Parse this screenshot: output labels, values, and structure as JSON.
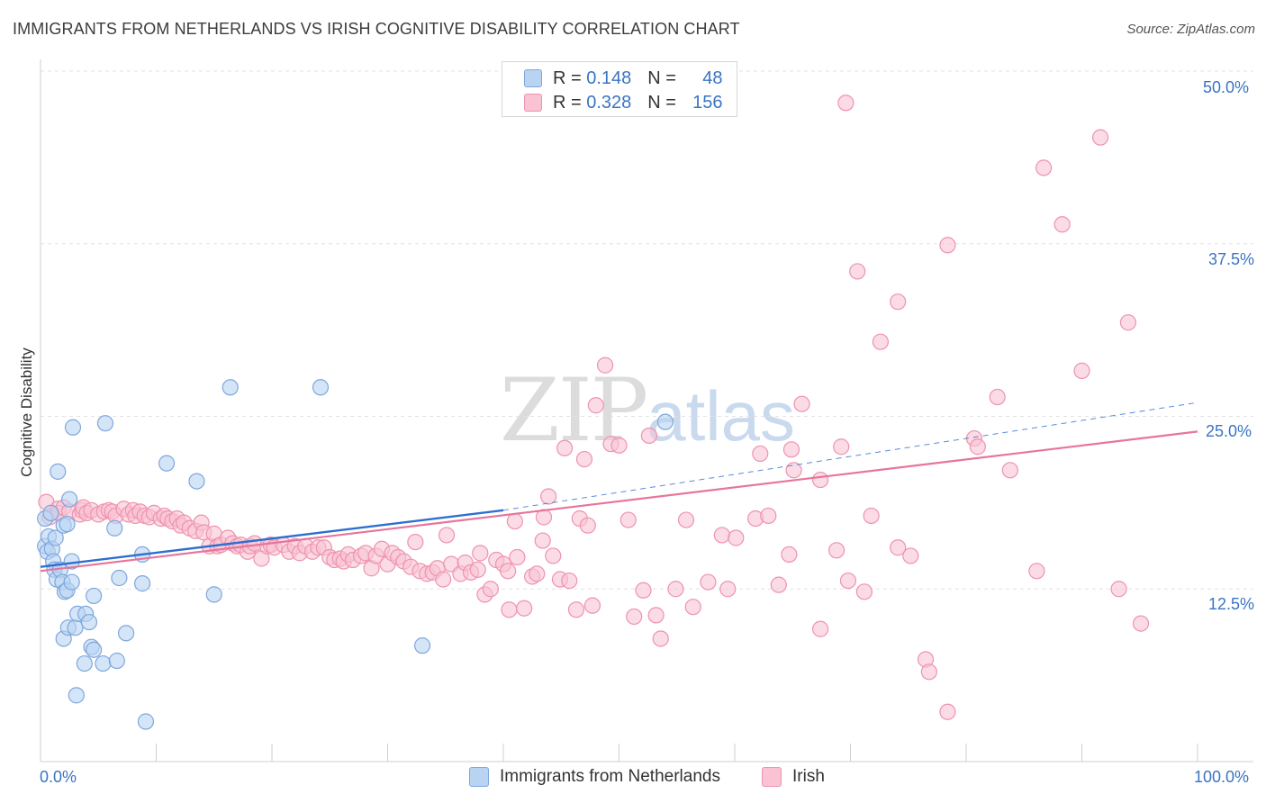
{
  "title": "IMMIGRANTS FROM NETHERLANDS VS IRISH COGNITIVE DISABILITY CORRELATION CHART",
  "source": "Source: ZipAtlas.com",
  "watermark": {
    "zip": "ZIP",
    "atlas": "atlas"
  },
  "legend": {
    "r_label": "R =",
    "n_label": "N =",
    "rows": [
      {
        "r": "0.148",
        "n": "48"
      },
      {
        "r": "0.328",
        "n": "156"
      }
    ]
  },
  "colors": {
    "blue_fill": "#b9d3f3",
    "blue_stroke": "#7ea7dc",
    "blue_line": "#2e6fcf",
    "pink_fill": "#f9c3d3",
    "pink_stroke": "#ee93ae",
    "pink_line": "#e8749b",
    "grid": "#e2e2e2",
    "axis_text": "#3a74c4"
  },
  "chart_data": {
    "type": "scatter",
    "title": "IMMIGRANTS FROM NETHERLANDS VS IRISH COGNITIVE DISABILITY CORRELATION CHART",
    "xlabel": "",
    "ylabel": "Cognitive Disability",
    "xlim": [
      0,
      100
    ],
    "ylim": [
      0,
      50
    ],
    "x_tick_labels": [
      "0.0%",
      "100.0%"
    ],
    "y_tick_labels": [
      "12.5%",
      "25.0%",
      "37.5%",
      "50.0%"
    ],
    "y_ticks": [
      12.5,
      25.0,
      37.5,
      50.0
    ],
    "grid": true,
    "legend_position": "top-center",
    "series": [
      {
        "name": "Immigrants from Netherlands",
        "r": 0.148,
        "n": 48,
        "trend": {
          "x": [
            0,
            40
          ],
          "y": [
            14.1,
            18.2
          ],
          "dashed_to": [
            100,
            26.0
          ]
        },
        "points": [
          [
            0.4,
            17.6
          ],
          [
            0.4,
            15.6
          ],
          [
            0.6,
            15.2
          ],
          [
            0.7,
            16.3
          ],
          [
            0.9,
            18.0
          ],
          [
            1.0,
            15.4
          ],
          [
            1.1,
            14.5
          ],
          [
            1.2,
            13.9
          ],
          [
            1.3,
            16.2
          ],
          [
            1.4,
            13.2
          ],
          [
            1.5,
            21.0
          ],
          [
            1.7,
            13.9
          ],
          [
            1.9,
            13.0
          ],
          [
            2.0,
            17.1
          ],
          [
            2.0,
            8.9
          ],
          [
            2.1,
            12.3
          ],
          [
            2.3,
            12.4
          ],
          [
            2.3,
            17.2
          ],
          [
            2.4,
            9.7
          ],
          [
            2.5,
            19.0
          ],
          [
            2.7,
            14.5
          ],
          [
            2.7,
            13.0
          ],
          [
            2.8,
            24.2
          ],
          [
            3.0,
            9.7
          ],
          [
            3.1,
            4.8
          ],
          [
            3.2,
            10.7
          ],
          [
            3.8,
            7.1
          ],
          [
            3.9,
            10.7
          ],
          [
            4.2,
            10.1
          ],
          [
            4.4,
            8.3
          ],
          [
            4.6,
            12.0
          ],
          [
            4.6,
            8.1
          ],
          [
            5.4,
            7.1
          ],
          [
            5.6,
            24.5
          ],
          [
            6.4,
            16.9
          ],
          [
            6.6,
            7.3
          ],
          [
            6.8,
            13.3
          ],
          [
            7.4,
            9.3
          ],
          [
            8.8,
            15.0
          ],
          [
            8.8,
            12.9
          ],
          [
            9.1,
            2.9
          ],
          [
            10.9,
            21.6
          ],
          [
            13.5,
            20.3
          ],
          [
            15.0,
            12.1
          ],
          [
            16.4,
            27.1
          ],
          [
            24.2,
            27.1
          ],
          [
            33.0,
            8.4
          ],
          [
            54.0,
            24.6
          ]
        ]
      },
      {
        "name": "Irish",
        "r": 0.328,
        "n": 156,
        "trend": {
          "x": [
            0,
            100
          ],
          "y": [
            13.8,
            23.9
          ]
        },
        "points": [
          [
            0.5,
            18.8
          ],
          [
            0.8,
            17.7
          ],
          [
            1.5,
            18.3
          ],
          [
            1.6,
            18.0
          ],
          [
            2.0,
            18.4
          ],
          [
            2.5,
            18.1
          ],
          [
            3.4,
            17.9
          ],
          [
            3.6,
            18.2
          ],
          [
            3.7,
            18.4
          ],
          [
            4.0,
            18.0
          ],
          [
            4.4,
            18.2
          ],
          [
            5.0,
            17.9
          ],
          [
            5.5,
            18.1
          ],
          [
            5.9,
            18.2
          ],
          [
            6.2,
            18.1
          ],
          [
            6.5,
            17.8
          ],
          [
            7.2,
            18.3
          ],
          [
            7.6,
            17.9
          ],
          [
            8.0,
            18.2
          ],
          [
            8.2,
            17.8
          ],
          [
            8.6,
            18.1
          ],
          [
            9.0,
            17.8
          ],
          [
            9.4,
            17.7
          ],
          [
            9.8,
            18.0
          ],
          [
            10.4,
            17.6
          ],
          [
            10.7,
            17.8
          ],
          [
            11.0,
            17.6
          ],
          [
            11.4,
            17.4
          ],
          [
            11.8,
            17.6
          ],
          [
            12.1,
            17.1
          ],
          [
            12.4,
            17.3
          ],
          [
            12.9,
            16.9
          ],
          [
            13.4,
            16.7
          ],
          [
            13.9,
            17.3
          ],
          [
            14.1,
            16.6
          ],
          [
            14.6,
            15.6
          ],
          [
            15.0,
            16.5
          ],
          [
            15.3,
            15.6
          ],
          [
            15.6,
            15.7
          ],
          [
            16.2,
            16.2
          ],
          [
            16.6,
            15.8
          ],
          [
            17.0,
            15.6
          ],
          [
            17.3,
            15.7
          ],
          [
            17.9,
            15.2
          ],
          [
            18.1,
            15.6
          ],
          [
            18.5,
            15.8
          ],
          [
            19.1,
            14.7
          ],
          [
            19.6,
            15.6
          ],
          [
            19.9,
            15.7
          ],
          [
            20.2,
            15.5
          ],
          [
            21.0,
            15.7
          ],
          [
            21.5,
            15.2
          ],
          [
            22.0,
            15.6
          ],
          [
            22.4,
            15.1
          ],
          [
            22.9,
            15.6
          ],
          [
            23.5,
            15.2
          ],
          [
            24.0,
            15.5
          ],
          [
            24.5,
            15.5
          ],
          [
            25.0,
            14.8
          ],
          [
            25.4,
            14.6
          ],
          [
            25.9,
            14.7
          ],
          [
            26.2,
            14.5
          ],
          [
            26.6,
            15.0
          ],
          [
            27.0,
            14.6
          ],
          [
            27.7,
            14.9
          ],
          [
            28.1,
            15.1
          ],
          [
            28.6,
            14.0
          ],
          [
            29.0,
            14.9
          ],
          [
            29.5,
            15.4
          ],
          [
            30.0,
            14.3
          ],
          [
            30.4,
            15.1
          ],
          [
            30.9,
            14.8
          ],
          [
            31.4,
            14.5
          ],
          [
            32.0,
            14.1
          ],
          [
            32.4,
            15.9
          ],
          [
            32.8,
            13.8
          ],
          [
            33.4,
            13.6
          ],
          [
            33.9,
            13.7
          ],
          [
            34.3,
            14.0
          ],
          [
            34.8,
            13.2
          ],
          [
            35.1,
            16.4
          ],
          [
            35.5,
            14.3
          ],
          [
            36.3,
            13.6
          ],
          [
            36.7,
            14.4
          ],
          [
            37.2,
            13.7
          ],
          [
            37.8,
            13.9
          ],
          [
            38.4,
            12.1
          ],
          [
            38.0,
            15.1
          ],
          [
            38.9,
            12.5
          ],
          [
            39.4,
            14.6
          ],
          [
            40.0,
            14.3
          ],
          [
            40.4,
            13.8
          ],
          [
            40.5,
            11.0
          ],
          [
            41.0,
            17.4
          ],
          [
            41.2,
            14.8
          ],
          [
            41.8,
            11.1
          ],
          [
            42.5,
            13.4
          ],
          [
            42.9,
            13.6
          ],
          [
            43.4,
            16.0
          ],
          [
            43.5,
            17.7
          ],
          [
            43.9,
            19.2
          ],
          [
            44.3,
            14.9
          ],
          [
            44.9,
            13.2
          ],
          [
            45.3,
            22.7
          ],
          [
            45.7,
            13.1
          ],
          [
            46.3,
            11.0
          ],
          [
            46.6,
            17.6
          ],
          [
            47.0,
            21.9
          ],
          [
            47.3,
            17.1
          ],
          [
            47.7,
            11.3
          ],
          [
            48.0,
            25.8
          ],
          [
            48.8,
            28.7
          ],
          [
            49.3,
            23.0
          ],
          [
            50.0,
            22.9
          ],
          [
            50.8,
            17.5
          ],
          [
            51.3,
            10.5
          ],
          [
            52.1,
            12.4
          ],
          [
            52.6,
            23.6
          ],
          [
            53.2,
            10.6
          ],
          [
            53.6,
            8.9
          ],
          [
            54.9,
            12.5
          ],
          [
            55.8,
            17.5
          ],
          [
            56.4,
            11.2
          ],
          [
            57.7,
            13.0
          ],
          [
            58.9,
            16.4
          ],
          [
            59.4,
            12.5
          ],
          [
            60.1,
            16.2
          ],
          [
            61.8,
            17.6
          ],
          [
            62.2,
            22.3
          ],
          [
            62.9,
            17.8
          ],
          [
            63.8,
            12.8
          ],
          [
            64.7,
            15.0
          ],
          [
            64.9,
            22.6
          ],
          [
            65.1,
            21.1
          ],
          [
            65.8,
            25.9
          ],
          [
            67.4,
            20.4
          ],
          [
            67.4,
            9.6
          ],
          [
            68.8,
            15.3
          ],
          [
            69.2,
            22.8
          ],
          [
            69.8,
            13.1
          ],
          [
            69.6,
            47.7
          ],
          [
            70.6,
            35.5
          ],
          [
            71.2,
            12.3
          ],
          [
            71.8,
            17.8
          ],
          [
            72.6,
            30.4
          ],
          [
            74.1,
            33.3
          ],
          [
            74.1,
            15.5
          ],
          [
            75.2,
            14.9
          ],
          [
            76.5,
            7.4
          ],
          [
            76.8,
            6.5
          ],
          [
            78.4,
            3.6
          ],
          [
            78.4,
            37.4
          ],
          [
            80.7,
            23.4
          ],
          [
            81.0,
            22.8
          ],
          [
            82.7,
            26.4
          ],
          [
            83.8,
            21.1
          ],
          [
            86.1,
            13.8
          ],
          [
            86.7,
            43.0
          ],
          [
            88.3,
            38.9
          ],
          [
            90.0,
            28.3
          ],
          [
            91.6,
            45.2
          ],
          [
            93.2,
            12.5
          ],
          [
            94.0,
            31.8
          ],
          [
            95.1,
            10.0
          ]
        ]
      }
    ]
  },
  "bottom_legend": [
    {
      "label": "Immigrants from Netherlands"
    },
    {
      "label": "Irish"
    }
  ]
}
